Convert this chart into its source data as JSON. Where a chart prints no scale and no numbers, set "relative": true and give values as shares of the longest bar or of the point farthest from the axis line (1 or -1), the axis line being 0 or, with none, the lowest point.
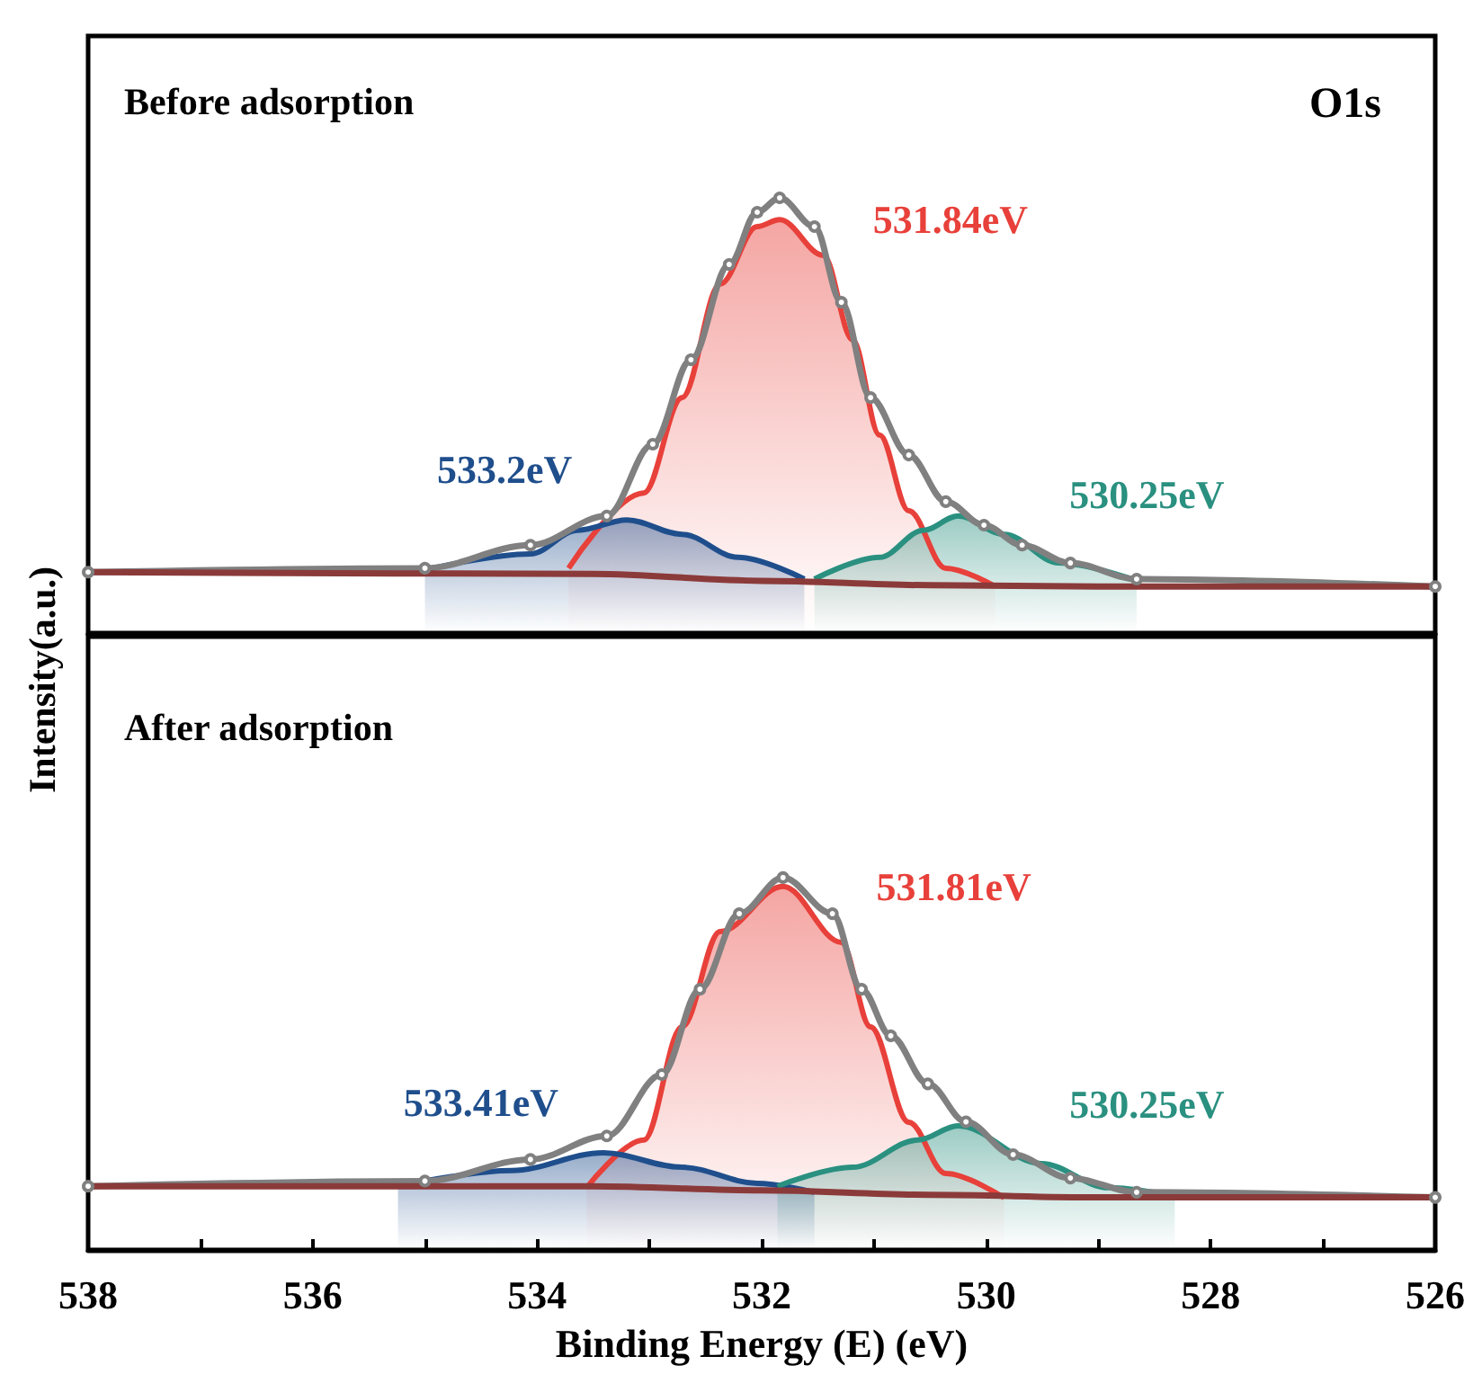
{
  "chart_data": [
    {
      "type": "line",
      "relative": true,
      "ylabel": "Intensity(a.u.)",
      "xlim": [
        538,
        526
      ],
      "tick_labels": false,
      "grid": false,
      "annotations": [
        "Before adsorption",
        "O1s"
      ],
      "series": [
        {
          "color": "#808080",
          "marker": "circle",
          "x": [
            538,
            535.0,
            534.06,
            533.38,
            532.97,
            532.63,
            532.29,
            532.04,
            531.84,
            531.53,
            531.29,
            531.03,
            530.69,
            530.36,
            530.02,
            529.68,
            529.25,
            528.66,
            526
          ],
          "values": [
            0.14,
            0.149,
            0.202,
            0.269,
            0.434,
            0.628,
            0.847,
            0.967,
            1.0,
            0.934,
            0.76,
            0.541,
            0.409,
            0.302,
            0.248,
            0.202,
            0.161,
            0.124,
            0.107
          ]
        },
        {
          "type": "area",
          "name": "531.84eV",
          "color": "#e8403a",
          "x": [
            533.72,
            533.05,
            532.71,
            532.37,
            532.04,
            531.84,
            531.45,
            531.19,
            530.95,
            530.69,
            530.36,
            529.92
          ],
          "values": [
            0.149,
            0.322,
            0.541,
            0.802,
            0.934,
            0.95,
            0.868,
            0.674,
            0.455,
            0.281,
            0.149,
            0.107
          ]
        },
        {
          "type": "area",
          "name": "533.2eV",
          "color": "#1f4e8c",
          "x": [
            535.0,
            534.06,
            533.64,
            533.2,
            532.71,
            532.21,
            531.62
          ],
          "values": [
            0.145,
            0.182,
            0.236,
            0.26,
            0.227,
            0.174,
            0.124
          ]
        },
        {
          "type": "area",
          "name": "530.25eV",
          "color": "#2a9080",
          "x": [
            531.53,
            530.95,
            530.56,
            530.25,
            529.84,
            529.35,
            528.66
          ],
          "values": [
            0.124,
            0.174,
            0.236,
            0.269,
            0.227,
            0.161,
            0.12
          ]
        },
        {
          "color": "#8b3a3a",
          "x": [
            538,
            533.5,
            532,
            530.5,
            529,
            526
          ],
          "values": [
            0.14,
            0.136,
            0.12,
            0.11,
            0.107,
            0.107
          ]
        }
      ]
    },
    {
      "type": "line",
      "relative": true,
      "xlabel": "Binding Energy (E) (eV)",
      "xlim": [
        538,
        526
      ],
      "xticks": [
        538,
        {
          "value": 537,
          "label": null
        },
        536,
        {
          "value": 535,
          "label": null
        },
        534,
        {
          "value": 533,
          "label": null
        },
        532,
        {
          "value": 531,
          "label": null
        },
        530,
        {
          "value": 529,
          "label": null
        },
        528,
        {
          "value": 527,
          "label": null
        },
        526
      ],
      "tick_labels": "x",
      "grid": false,
      "annotations": [
        "After adsorption"
      ],
      "series": [
        {
          "color": "#808080",
          "marker": "circle",
          "x": [
            538,
            535.0,
            534.06,
            533.38,
            532.89,
            532.55,
            532.2,
            531.81,
            531.37,
            531.11,
            530.85,
            530.52,
            530.18,
            529.76,
            529.25,
            528.66,
            526
          ],
          "values": [
            0.171,
            0.185,
            0.243,
            0.306,
            0.471,
            0.7,
            0.903,
            1.0,
            0.903,
            0.7,
            0.575,
            0.446,
            0.344,
            0.256,
            0.193,
            0.155,
            0.141
          ]
        },
        {
          "type": "area",
          "name": "531.81eV",
          "color": "#e8403a",
          "x": [
            533.56,
            533.05,
            532.71,
            532.37,
            531.81,
            531.29,
            531.03,
            530.69,
            530.36,
            529.84
          ],
          "values": [
            0.167,
            0.295,
            0.599,
            0.855,
            0.976,
            0.826,
            0.599,
            0.343,
            0.205,
            0.14
          ]
        },
        {
          "type": "area",
          "name": "533.41eV",
          "color": "#1f4e8c",
          "x": [
            535.24,
            534.23,
            533.41,
            532.71,
            532.04,
            531.53
          ],
          "values": [
            0.171,
            0.213,
            0.261,
            0.222,
            0.179,
            0.155
          ]
        },
        {
          "type": "area",
          "name": "530.25eV",
          "color": "#2a9080",
          "x": [
            531.86,
            531.19,
            530.61,
            530.25,
            529.51,
            528.91,
            528.32
          ],
          "values": [
            0.171,
            0.222,
            0.295,
            0.333,
            0.232,
            0.167,
            0.145
          ]
        },
        {
          "color": "#8b3a3a",
          "x": [
            538,
            533.5,
            532,
            530.5,
            529,
            526
          ],
          "values": [
            0.171,
            0.171,
            0.16,
            0.148,
            0.141,
            0.141
          ]
        }
      ]
    }
  ]
}
